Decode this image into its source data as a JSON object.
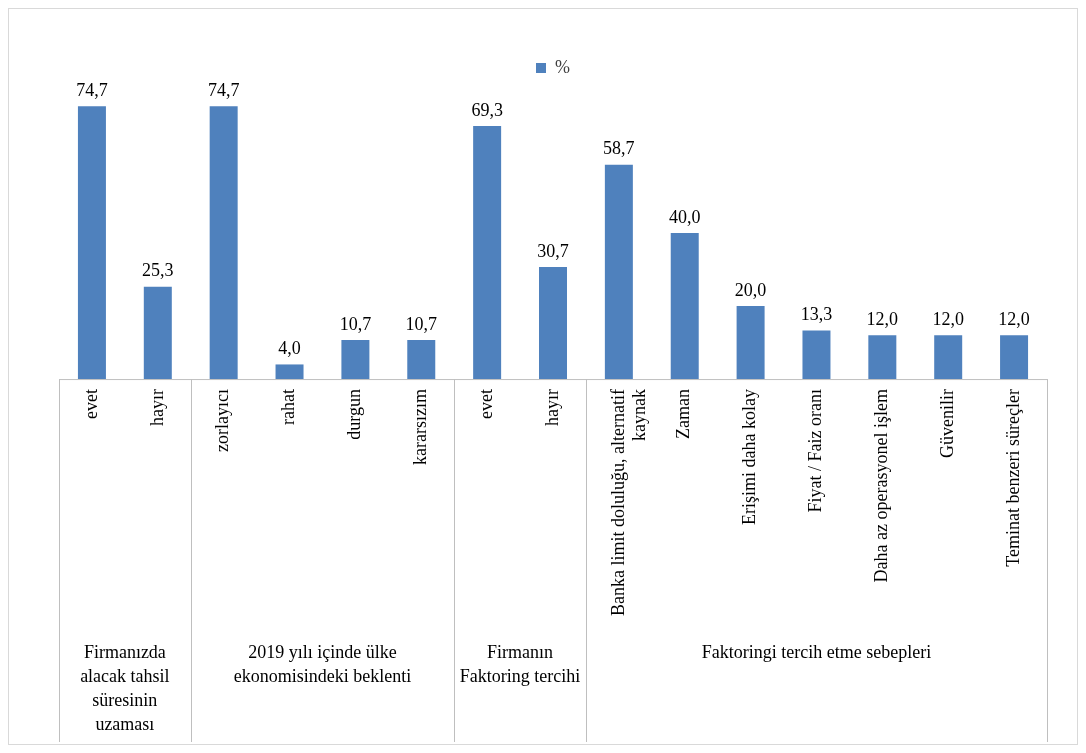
{
  "chart_data": {
    "type": "bar",
    "categories": [
      "evet",
      "hayır",
      "zorlayıcı",
      "rahat",
      "durgun",
      "kararsızım",
      "evet",
      "hayır",
      "Banka limit doluluğu, alternatif kaynak",
      "Zaman",
      "Erişimi daha kolay",
      "Fiyat / Faiz oranı",
      "Daha az operasyonel işlem",
      "Güvenilir",
      "Teminat benzeri süreçler"
    ],
    "series": [
      {
        "name": "%",
        "color": "#4f81bd",
        "values": [
          74.7,
          25.3,
          74.7,
          4.0,
          10.7,
          10.7,
          69.3,
          30.7,
          58.7,
          40.0,
          20.0,
          13.3,
          12.0,
          12.0,
          12.0
        ],
        "value_labels": [
          "74,7",
          "25,3",
          "74,7",
          "4,0",
          "10,7",
          "10,7",
          "69,3",
          "30,7",
          "58,7",
          "40,0",
          "20,0",
          "13,3",
          "12,0",
          "12,0",
          "12,0"
        ]
      }
    ],
    "annotations": [
      "Firmanızda alacak tahsil süresinin uzaması",
      "2019 yılı içinde ülke ekonomisindeki beklenti",
      "Firmanın Faktoring tercihi",
      "Faktoringi tercih etme sebepleri"
    ],
    "legend": "top"
  }
}
